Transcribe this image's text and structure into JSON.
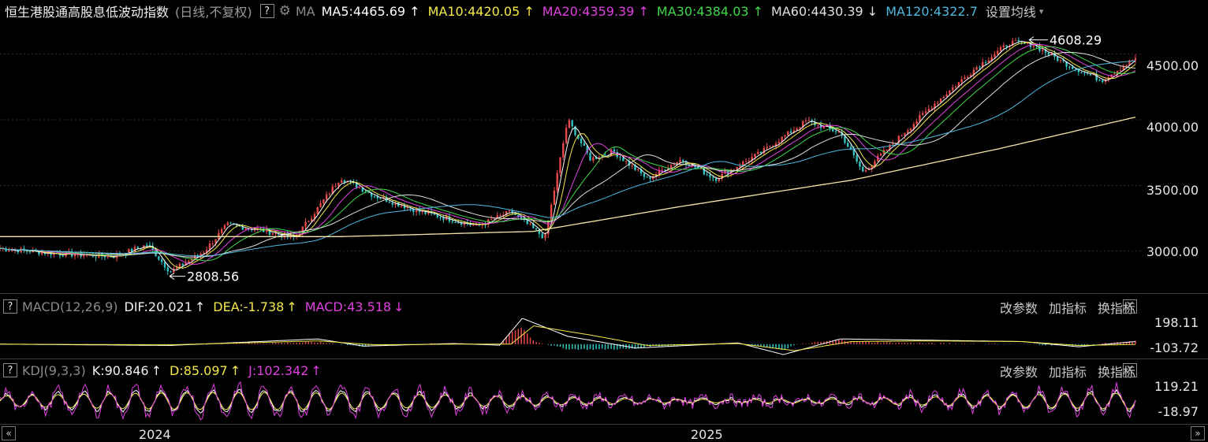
{
  "header": {
    "title": "恒生港股通高股息低波动指数",
    "subtitle": "(日线,不复权)",
    "help": "?",
    "gear_icon": "gear-icon",
    "ma_label": "MA",
    "ma_items": [
      {
        "text": "MA5:4465.69",
        "arrow": "↑",
        "color": "#ffffff"
      },
      {
        "text": "MA10:4420.05",
        "arrow": "↑",
        "color": "#f5e84a"
      },
      {
        "text": "MA20:4359.39",
        "arrow": "↑",
        "color": "#e040e0"
      },
      {
        "text": "MA30:4384.03",
        "arrow": "↑",
        "color": "#3fd84a"
      },
      {
        "text": "MA60:4430.39",
        "arrow": "↓",
        "color": "#e0e0e0"
      },
      {
        "text": "MA120:4322.7",
        "arrow": "",
        "color": "#4fb8e0"
      }
    ],
    "settings": "设置均线",
    "settings_caret": "▾"
  },
  "macd": {
    "help": "?",
    "label": "MACD(12,26,9)",
    "dif": "DIF:20.021",
    "dif_arrow": "↑",
    "dea": "DEA:-1.738",
    "dea_arrow": "↑",
    "macd": "MACD:43.518",
    "macd_arrow": "↓",
    "btn_change_param": "改参数",
    "btn_add": "加指标",
    "btn_switch": "换指标",
    "close": "X",
    "ytick_top": "198.11",
    "ytick_bottom": "-103.72"
  },
  "kdj": {
    "help": "?",
    "label": "KDJ(9,3,3)",
    "k": "K:90.846",
    "k_arrow": "↑",
    "d": "D:85.097",
    "d_arrow": "↑",
    "j": "J:102.342",
    "j_arrow": "↑",
    "btn_change_param": "改参数",
    "btn_add": "加指标",
    "btn_switch": "换指标",
    "close": "X",
    "ytick_top": "119.21",
    "ytick_bottom": "-18.97"
  },
  "footer": {
    "nav_left": "«",
    "nav_right": "»",
    "year1": "2024",
    "year2": "2025"
  },
  "chart_data": [
    {
      "type": "candlestick",
      "yticks": [
        3000,
        3500,
        4000,
        4500
      ],
      "ytick_labels": [
        "3000.00",
        "3500.00",
        "4000.00",
        "4500.00"
      ],
      "ylim": [
        2680,
        4720
      ],
      "x_labels": [
        "2024",
        "2025"
      ],
      "annotations": [
        {
          "text": "4608.29",
          "value": 4608.29,
          "kind": "max"
        },
        {
          "text": "2808.56",
          "value": 2808.56,
          "kind": "min"
        }
      ],
      "close_path": [
        [
          0,
          3020
        ],
        [
          0.05,
          2980
        ],
        [
          0.1,
          2960
        ],
        [
          0.13,
          3050
        ],
        [
          0.15,
          2840
        ],
        [
          0.18,
          3000
        ],
        [
          0.2,
          3200
        ],
        [
          0.23,
          3160
        ],
        [
          0.26,
          3100
        ],
        [
          0.3,
          3560
        ],
        [
          0.33,
          3420
        ],
        [
          0.37,
          3300
        ],
        [
          0.42,
          3190
        ],
        [
          0.45,
          3300
        ],
        [
          0.48,
          3100
        ],
        [
          0.5,
          4000
        ],
        [
          0.52,
          3700
        ],
        [
          0.54,
          3760
        ],
        [
          0.57,
          3550
        ],
        [
          0.6,
          3700
        ],
        [
          0.63,
          3550
        ],
        [
          0.67,
          3750
        ],
        [
          0.71,
          3990
        ],
        [
          0.74,
          3900
        ],
        [
          0.76,
          3600
        ],
        [
          0.79,
          3850
        ],
        [
          0.82,
          4100
        ],
        [
          0.86,
          4400
        ],
        [
          0.89,
          4590
        ],
        [
          0.91,
          4570
        ],
        [
          0.94,
          4420
        ],
        [
          0.97,
          4300
        ],
        [
          1.0,
          4470
        ]
      ],
      "ma_lines": [
        {
          "name": "MA5",
          "color": "#ffffff",
          "smooth": 1
        },
        {
          "name": "MA10",
          "color": "#f5e84a",
          "smooth": 2
        },
        {
          "name": "MA20",
          "color": "#e040e0",
          "smooth": 4
        },
        {
          "name": "MA30",
          "color": "#3fd84a",
          "smooth": 6
        },
        {
          "name": "MA60",
          "color": "#e0e0e0",
          "smooth": 10
        },
        {
          "name": "MA120",
          "color": "#4fb8e0",
          "smooth": 18
        }
      ],
      "long_ma_path": [
        [
          0,
          3110
        ],
        [
          0.3,
          3110
        ],
        [
          0.47,
          3150
        ],
        [
          0.6,
          3340
        ],
        [
          0.75,
          3540
        ],
        [
          0.88,
          3780
        ],
        [
          1.0,
          4020
        ]
      ]
    },
    {
      "type": "macd",
      "ylim": [
        -103.72,
        198.11
      ],
      "dif_path": [
        [
          0,
          0
        ],
        [
          0.15,
          -10
        ],
        [
          0.28,
          40
        ],
        [
          0.32,
          -15
        ],
        [
          0.4,
          5
        ],
        [
          0.44,
          -8
        ],
        [
          0.46,
          198
        ],
        [
          0.5,
          60
        ],
        [
          0.56,
          -30
        ],
        [
          0.65,
          10
        ],
        [
          0.69,
          -80
        ],
        [
          0.74,
          40
        ],
        [
          0.82,
          30
        ],
        [
          0.9,
          20
        ],
        [
          0.95,
          -20
        ],
        [
          1.0,
          20
        ]
      ],
      "dea_path": [
        [
          0,
          0
        ],
        [
          0.15,
          -5
        ],
        [
          0.28,
          25
        ],
        [
          0.33,
          -5
        ],
        [
          0.4,
          0
        ],
        [
          0.45,
          0
        ],
        [
          0.47,
          140
        ],
        [
          0.52,
          70
        ],
        [
          0.57,
          -10
        ],
        [
          0.65,
          5
        ],
        [
          0.7,
          -50
        ],
        [
          0.75,
          20
        ],
        [
          0.82,
          25
        ],
        [
          0.9,
          20
        ],
        [
          0.95,
          -10
        ],
        [
          1.0,
          -2
        ]
      ]
    },
    {
      "type": "kdj",
      "ylim": [
        -18.97,
        119.21
      ],
      "cycles": 44
    }
  ]
}
